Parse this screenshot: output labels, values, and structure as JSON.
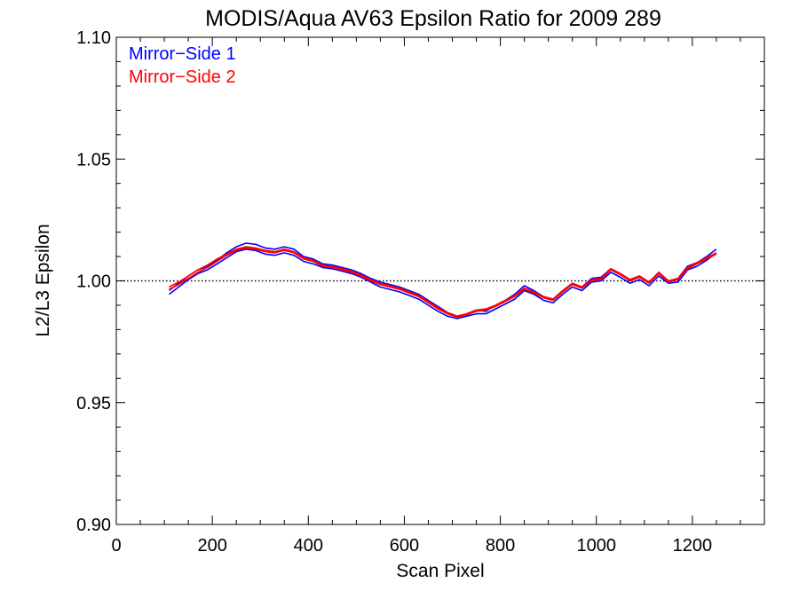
{
  "chart_data": {
    "type": "line",
    "title": "MODIS/Aqua AV63 Epsilon Ratio for 2009 289",
    "xlabel": "Scan Pixel",
    "ylabel": "L2/L3 Epsilon",
    "xlim": [
      0,
      1350
    ],
    "ylim": [
      0.9,
      1.1
    ],
    "x_ticks": [
      0,
      200,
      400,
      600,
      800,
      1000,
      1200
    ],
    "x_tick_labels": [
      "0",
      "200",
      "400",
      "600",
      "800",
      "1000",
      "1200"
    ],
    "y_ticks": [
      0.9,
      0.95,
      1.0,
      1.05,
      1.1
    ],
    "y_tick_labels": [
      "0.90",
      "0.95",
      "1.00",
      "1.05",
      "1.10"
    ],
    "reference_line": 1.0,
    "legend": {
      "placement": "top-left",
      "entries": [
        {
          "label": "Mirror−Side 1",
          "color": "#0000ff"
        },
        {
          "label": "Mirror−Side 2",
          "color": "#ff0000"
        }
      ]
    },
    "x": [
      110,
      130,
      150,
      170,
      190,
      210,
      230,
      250,
      270,
      290,
      310,
      330,
      350,
      370,
      390,
      410,
      430,
      450,
      470,
      490,
      510,
      530,
      550,
      570,
      590,
      610,
      630,
      650,
      670,
      690,
      710,
      730,
      750,
      770,
      790,
      810,
      830,
      850,
      870,
      890,
      910,
      930,
      950,
      970,
      990,
      1010,
      1030,
      1050,
      1070,
      1090,
      1110,
      1130,
      1150,
      1170,
      1190,
      1210,
      1230,
      1250
    ],
    "series": [
      {
        "mirror_side": 1,
        "color": "#0000ff",
        "values": [
          0.996,
          0.999,
          1.002,
          1.0045,
          1.006,
          1.0085,
          1.0115,
          1.014,
          1.0155,
          1.015,
          1.0135,
          1.013,
          1.014,
          1.013,
          1.01,
          1.009,
          1.007,
          1.0065,
          1.0055,
          1.0045,
          1.003,
          1.001,
          0.9995,
          0.9985,
          0.9975,
          0.996,
          0.9945,
          0.992,
          0.9895,
          0.987,
          0.9855,
          0.9865,
          0.988,
          0.9875,
          0.99,
          0.992,
          0.9945,
          0.998,
          0.996,
          0.9935,
          0.9925,
          0.996,
          0.999,
          0.9975,
          1.001,
          1.0015,
          1.005,
          1.003,
          1.0005,
          1.002,
          0.9995,
          1.0035,
          1.0,
          1.001,
          1.006,
          1.0075,
          1.01,
          1.013
        ]
      },
      {
        "mirror_side": 1,
        "color": "#0000ff",
        "values": [
          0.9945,
          0.9975,
          1.0005,
          1.003,
          1.0045,
          1.007,
          1.0095,
          1.012,
          1.013,
          1.0125,
          1.011,
          1.0105,
          1.0115,
          1.0105,
          1.008,
          1.007,
          1.0055,
          1.005,
          1.004,
          1.003,
          1.0015,
          0.9995,
          0.9975,
          0.9965,
          0.9955,
          0.994,
          0.9925,
          0.99,
          0.9875,
          0.9855,
          0.9845,
          0.9855,
          0.9865,
          0.9865,
          0.9885,
          0.9905,
          0.9925,
          0.996,
          0.9945,
          0.992,
          0.991,
          0.9945,
          0.9975,
          0.996,
          0.9995,
          1.0,
          1.0035,
          1.0015,
          0.999,
          1.0005,
          0.998,
          1.002,
          0.999,
          0.9995,
          1.0045,
          1.006,
          1.0085,
          1.0115
        ]
      },
      {
        "mirror_side": 2,
        "color": "#ff0000",
        "values": [
          0.9965,
          0.9985,
          1.001,
          1.0035,
          1.0055,
          1.008,
          1.0105,
          1.0125,
          1.0135,
          1.013,
          1.012,
          1.0115,
          1.0125,
          1.0115,
          1.009,
          1.008,
          1.006,
          1.0055,
          1.0045,
          1.0035,
          1.002,
          1.0,
          0.9985,
          0.9975,
          0.9965,
          0.995,
          0.9935,
          0.991,
          0.9885,
          0.9865,
          0.985,
          0.986,
          0.9875,
          0.988,
          0.9895,
          0.9915,
          0.9935,
          0.9965,
          0.995,
          0.993,
          0.992,
          0.9955,
          0.9985,
          0.997,
          1.0,
          1.0005,
          1.0045,
          1.0025,
          1.0,
          1.0015,
          0.999,
          1.003,
          0.9995,
          1.0005,
          1.005,
          1.007,
          1.009,
          1.011
        ]
      },
      {
        "mirror_side": 2,
        "color": "#ff0000",
        "values": [
          0.9975,
          0.9995,
          1.002,
          1.0045,
          1.0065,
          1.009,
          1.011,
          1.013,
          1.014,
          1.0135,
          1.0125,
          1.012,
          1.013,
          1.012,
          1.0095,
          1.0085,
          1.0065,
          1.006,
          1.005,
          1.004,
          1.0025,
          1.0005,
          0.999,
          0.998,
          0.997,
          0.9955,
          0.994,
          0.9915,
          0.989,
          0.987,
          0.9855,
          0.9865,
          0.988,
          0.9885,
          0.99,
          0.992,
          0.994,
          0.997,
          0.9955,
          0.9935,
          0.9925,
          0.996,
          0.999,
          0.9975,
          1.0005,
          1.001,
          1.005,
          1.003,
          1.0005,
          1.002,
          0.9995,
          1.0035,
          1.0,
          1.001,
          1.0055,
          1.0075,
          1.0095,
          1.0115
        ]
      }
    ]
  }
}
